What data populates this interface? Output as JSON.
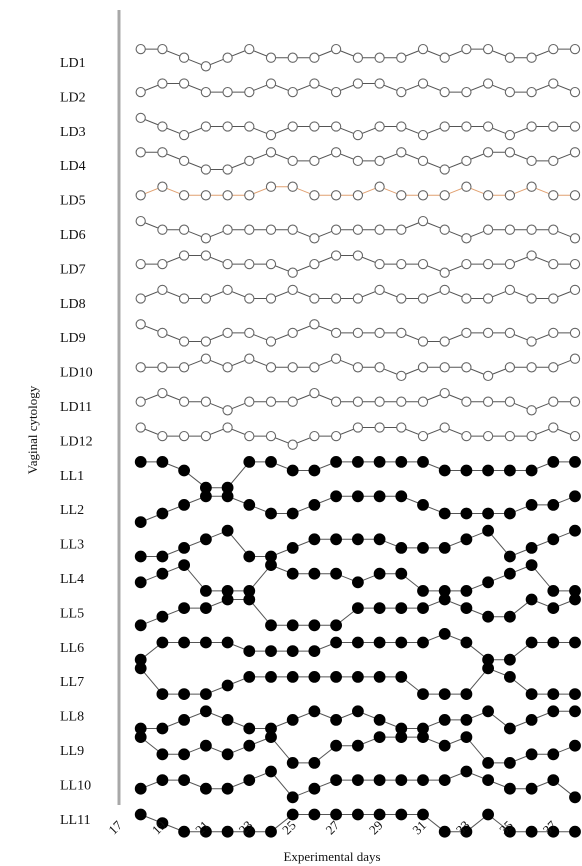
{
  "chart_data": {
    "type": "line",
    "xlabel": "Experimental days",
    "ylabel": "Vaginal cytology",
    "title": "",
    "xlim": [
      17,
      38
    ],
    "x_ticks": [
      17,
      19,
      21,
      23,
      25,
      27,
      29,
      31,
      33,
      35,
      37
    ],
    "rows": [
      "LD1",
      "LD2",
      "LD3",
      "LD4",
      "LD5",
      "LD6",
      "LD7",
      "LD8",
      "LD9",
      "LD10",
      "LD11",
      "LD12",
      "LL1",
      "LL2",
      "LL3",
      "LL4",
      "LL5",
      "LL6",
      "LL7",
      "LL8",
      "LL9",
      "LL10",
      "LL11"
    ],
    "stage_levels": "0 = lower-most position within the row, 3 = upper-most position (one level ≈ one quarter of a row spacing)",
    "days": [
      18,
      19,
      20,
      21,
      22,
      23,
      24,
      25,
      26,
      27,
      28,
      29,
      30,
      31,
      32,
      33,
      34,
      35,
      36,
      37,
      38
    ],
    "series": [
      {
        "name": "LD1",
        "group": "LD",
        "stages": [
          3,
          3,
          2,
          1,
          2,
          3,
          2,
          2,
          2,
          3,
          2,
          2,
          2,
          3,
          2,
          3,
          3,
          2,
          2,
          3,
          3
        ]
      },
      {
        "name": "LD2",
        "group": "LD",
        "stages": [
          2,
          3,
          3,
          2,
          2,
          2,
          3,
          2,
          3,
          2,
          3,
          3,
          2,
          3,
          2,
          2,
          3,
          2,
          2,
          3,
          2
        ]
      },
      {
        "name": "LD3",
        "group": "LD",
        "stages": [
          3,
          2,
          1,
          2,
          2,
          2,
          1,
          2,
          2,
          2,
          1,
          2,
          2,
          1,
          2,
          2,
          2,
          1,
          2,
          2,
          2
        ]
      },
      {
        "name": "LD4",
        "group": "LD",
        "stages": [
          3,
          3,
          2,
          1,
          1,
          2,
          3,
          2,
          2,
          3,
          2,
          2,
          3,
          2,
          1,
          2,
          3,
          3,
          2,
          2,
          3
        ]
      },
      {
        "name": "LD5",
        "group": "LD",
        "stages": [
          2,
          3,
          2,
          2,
          2,
          2,
          3,
          3,
          2,
          2,
          2,
          3,
          2,
          2,
          2,
          3,
          2,
          2,
          3,
          2,
          2
        ]
      },
      {
        "name": "LD6",
        "group": "LD",
        "stages": [
          3,
          2,
          2,
          1,
          2,
          2,
          2,
          2,
          1,
          2,
          2,
          2,
          2,
          3,
          2,
          1,
          2,
          2,
          2,
          2,
          1
        ]
      },
      {
        "name": "LD7",
        "group": "LD",
        "stages": [
          2,
          2,
          3,
          3,
          2,
          2,
          2,
          1,
          2,
          3,
          3,
          2,
          2,
          2,
          1,
          2,
          2,
          2,
          3,
          2,
          2
        ]
      },
      {
        "name": "LD8",
        "group": "LD",
        "stages": [
          2,
          3,
          2,
          2,
          3,
          2,
          2,
          3,
          2,
          2,
          2,
          3,
          2,
          2,
          3,
          2,
          2,
          3,
          2,
          2,
          3
        ]
      },
      {
        "name": "LD9",
        "group": "LD",
        "stages": [
          3,
          2,
          1,
          1,
          2,
          2,
          1,
          2,
          3,
          2,
          2,
          2,
          2,
          1,
          1,
          2,
          2,
          2,
          1,
          2,
          2
        ]
      },
      {
        "name": "LD10",
        "group": "LD",
        "stages": [
          2,
          2,
          2,
          3,
          2,
          3,
          2,
          2,
          2,
          3,
          2,
          2,
          1,
          2,
          2,
          2,
          1,
          2,
          2,
          2,
          3
        ]
      },
      {
        "name": "LD11",
        "group": "LD",
        "stages": [
          2,
          3,
          2,
          2,
          1,
          2,
          2,
          2,
          3,
          2,
          2,
          2,
          2,
          2,
          3,
          2,
          2,
          2,
          1,
          2,
          2
        ]
      },
      {
        "name": "LD12",
        "group": "LD",
        "stages": [
          3,
          2,
          2,
          2,
          3,
          2,
          2,
          1,
          2,
          2,
          3,
          3,
          3,
          2,
          3,
          2,
          2,
          2,
          2,
          3,
          2
        ]
      },
      {
        "name": "LL1",
        "group": "LL",
        "stages": [
          3,
          3,
          2,
          0,
          0,
          3,
          3,
          2,
          2,
          3,
          3,
          3,
          3,
          3,
          2,
          2,
          2,
          2,
          2,
          3,
          3
        ]
      },
      {
        "name": "LL2",
        "group": "LL",
        "stages": [
          0,
          1,
          2,
          3,
          3,
          2,
          1,
          1,
          2,
          3,
          3,
          3,
          3,
          2,
          1,
          1,
          1,
          1,
          2,
          2,
          3
        ]
      },
      {
        "name": "LL3",
        "group": "LL",
        "stages": [
          0,
          0,
          1,
          2,
          3,
          0,
          0,
          1,
          2,
          2,
          2,
          2,
          1,
          1,
          1,
          2,
          3,
          0,
          1,
          2,
          3
        ]
      },
      {
        "name": "LL4",
        "group": "LL",
        "stages": [
          1,
          2,
          3,
          0,
          0,
          0,
          3,
          2,
          2,
          2,
          1,
          2,
          2,
          0,
          0,
          0,
          1,
          2,
          3,
          0,
          0
        ]
      },
      {
        "name": "LL5",
        "group": "LL",
        "stages": [
          0,
          1,
          2,
          2,
          3,
          3,
          0,
          0,
          0,
          0,
          2,
          2,
          2,
          2,
          3,
          2,
          1,
          1,
          3,
          2,
          3
        ]
      },
      {
        "name": "LL6",
        "group": "LL",
        "stages": [
          0,
          2,
          2,
          2,
          2,
          1,
          1,
          1,
          1,
          2,
          2,
          2,
          2,
          2,
          3,
          2,
          0,
          0,
          2,
          2,
          2
        ]
      },
      {
        "name": "LL7",
        "group": "LL",
        "stages": [
          3,
          0,
          0,
          0,
          1,
          2,
          2,
          2,
          2,
          2,
          2,
          2,
          2,
          0,
          0,
          0,
          3,
          2,
          0,
          0,
          0
        ]
      },
      {
        "name": "LL8",
        "group": "LL",
        "stages": [
          0,
          0,
          1,
          2,
          1,
          0,
          0,
          1,
          2,
          1,
          2,
          1,
          0,
          0,
          1,
          1,
          2,
          0,
          1,
          2,
          2
        ]
      },
      {
        "name": "LL9",
        "group": "LL",
        "stages": [
          3,
          1,
          1,
          2,
          1,
          2,
          3,
          0,
          0,
          2,
          2,
          3,
          3,
          3,
          2,
          3,
          0,
          0,
          1,
          1,
          2
        ]
      },
      {
        "name": "LL10",
        "group": "LL",
        "stages": [
          1,
          2,
          2,
          1,
          1,
          2,
          3,
          0,
          1,
          2,
          2,
          2,
          2,
          2,
          2,
          3,
          2,
          1,
          1,
          2,
          0
        ]
      },
      {
        "name": "LL11",
        "group": "LL",
        "stages": [
          2,
          1,
          0,
          0,
          0,
          0,
          0,
          2,
          2,
          2,
          2,
          2,
          2,
          2,
          0,
          0,
          2,
          0,
          0,
          0,
          0
        ]
      }
    ]
  }
}
